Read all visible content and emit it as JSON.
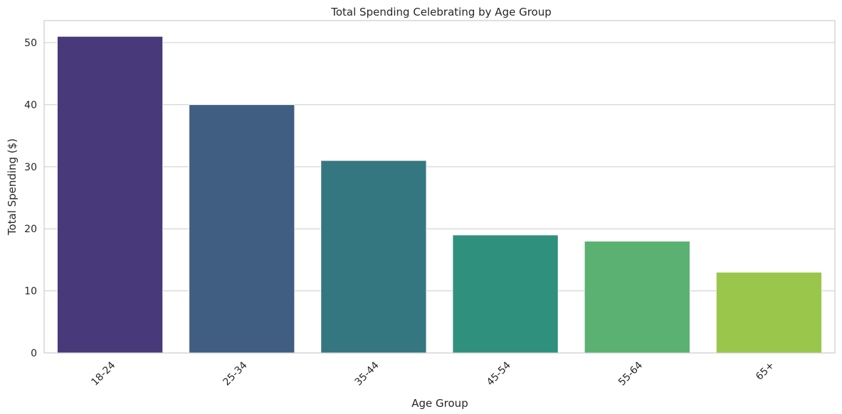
{
  "chart_data": {
    "type": "bar",
    "title": "Total Spending Celebrating by Age Group",
    "xlabel": "Age Group",
    "ylabel": "Total Spending ($)",
    "categories": [
      "18-24",
      "25-34",
      "35-44",
      "45-54",
      "55-64",
      "65+"
    ],
    "values": [
      51,
      40,
      31,
      19,
      18,
      13
    ],
    "colors": [
      "#48397a",
      "#3f5e82",
      "#357780",
      "#30907e",
      "#5ab172",
      "#9ac64c"
    ],
    "ylim": [
      0,
      53.55
    ],
    "yticks": [
      0,
      10,
      20,
      30,
      40,
      50
    ],
    "grid": "horizontal",
    "legend": "none"
  }
}
